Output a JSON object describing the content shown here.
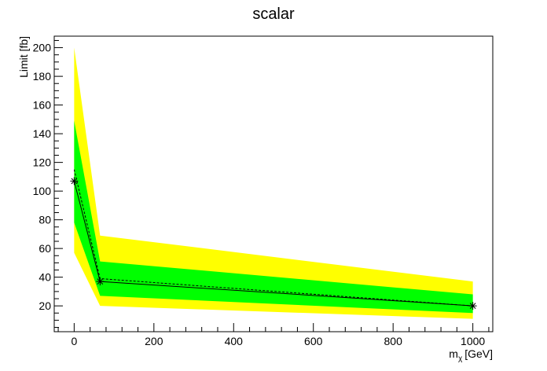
{
  "chart_data": {
    "type": "line",
    "title": "scalar",
    "xlabel_main": "m",
    "xlabel_sub": "χ",
    "xlabel_unit": "[GeV]",
    "ylabel": "Limit [fb]",
    "xlim": [
      -50,
      1050
    ],
    "ylim": [
      2,
      208
    ],
    "xticks": [
      0,
      200,
      400,
      600,
      800,
      1000
    ],
    "yticks": [
      20,
      40,
      60,
      80,
      100,
      120,
      140,
      160,
      180,
      200
    ],
    "x": [
      0,
      65,
      1000
    ],
    "band_2sigma": {
      "lower": [
        57,
        20,
        11
      ],
      "upper": [
        200,
        69,
        37
      ]
    },
    "band_1sigma": {
      "lower": [
        78,
        27,
        15
      ],
      "upper": [
        149,
        51,
        28
      ]
    },
    "expected": [
      115,
      39,
      20
    ],
    "observed": [
      107,
      37,
      20
    ],
    "colors": {
      "band_2sigma": "#ffff00",
      "band_1sigma": "#00ff00",
      "line": "#000000"
    },
    "grid": false,
    "legend": "none"
  }
}
